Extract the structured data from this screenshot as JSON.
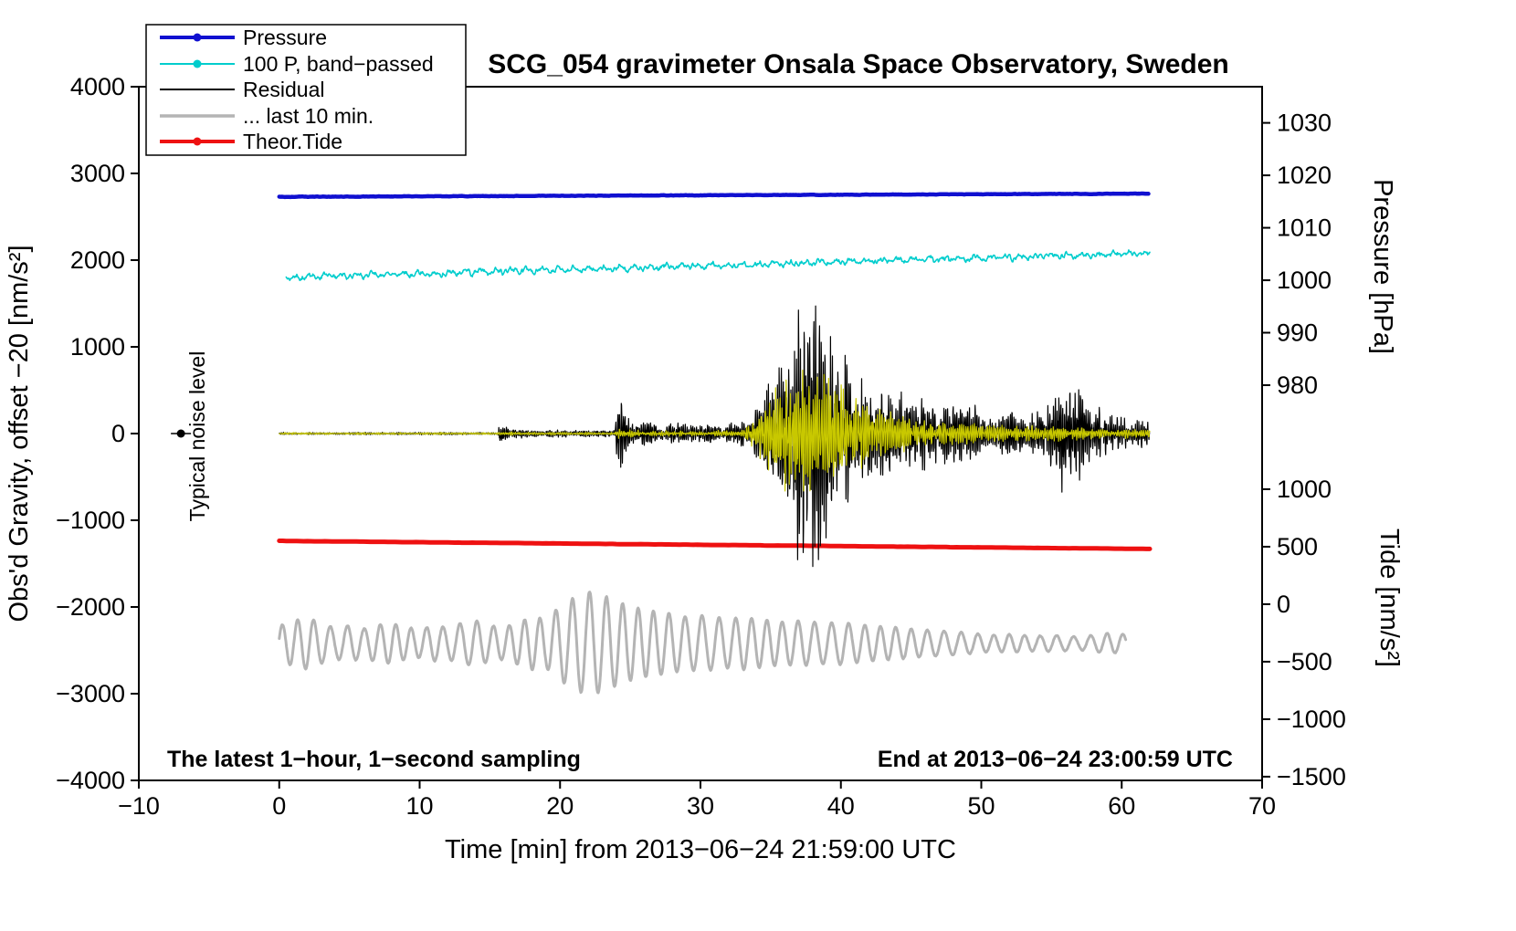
{
  "chart_data": {
    "type": "line",
    "title": "SCG_054 gravimeter Onsala Space Observatory, Sweden",
    "xlabel": "Time [min] from 2013−06−24 21:59:00 UTC",
    "ylabel_left": "Obs'd Gravity, offset −20 [nm/s²]",
    "ylabel_pressure": "Pressure [hPa]",
    "ylabel_tide": "Tide [nm/s²]",
    "annotations": {
      "sampling_note": "The latest 1−hour, 1−second sampling",
      "end_time_note": "End at 2013−06−24 23:00:59 UTC",
      "noise_label": "Typical noise level",
      "noise_marker": {
        "x": -7,
        "y": 0
      }
    },
    "axes": {
      "x": {
        "min": -10,
        "max": 70,
        "ticks": [
          -10,
          0,
          10,
          20,
          30,
          40,
          50,
          60,
          70
        ]
      },
      "y_left": {
        "min": -4000,
        "max": 4000,
        "ticks": [
          -4000,
          -3000,
          -2000,
          -1000,
          0,
          1000,
          2000,
          3000,
          4000
        ]
      },
      "pressure": {
        "ticks": [
          1030,
          1020,
          1010,
          1000,
          990,
          980
        ],
        "gravity_at_1000hPa": 1768,
        "gravity_per_hPa": 60.5
      },
      "tide": {
        "ticks": [
          1000,
          500,
          0,
          -500,
          -1000,
          -1500
        ],
        "gravity_at_0": -1968,
        "gravity_per_unit": 1.326
      }
    },
    "legend": [
      {
        "label": "Pressure",
        "color": "#1010d0",
        "dot": true,
        "sample_width": 4
      },
      {
        "label": "100 P, band−passed",
        "color": "#00cdcd",
        "dot": true,
        "sample_width": 2
      },
      {
        "label": "Residual",
        "color": "#000000",
        "dot": false,
        "sample_width": 2
      },
      {
        "label": "... last 10 min.",
        "color": "#b4b4b4",
        "dot": false,
        "sample_width": 3.5
      },
      {
        "label": "Theor.Tide",
        "color": "#ee1111",
        "dot": true,
        "sample_width": 4
      }
    ],
    "series": [
      {
        "id": "last10",
        "label": "... last 10 min.",
        "kind": "wave",
        "color": "#b4b4b4",
        "width": 3,
        "x_start": 0,
        "x_end": 60.3,
        "step": 0.04,
        "center": -2420,
        "carrier_period": 1.15,
        "noise": 8,
        "amp_envelope": [
          [
            0,
            200
          ],
          [
            1,
            260
          ],
          [
            2,
            300
          ],
          [
            3,
            230
          ],
          [
            4,
            180
          ],
          [
            5,
            210
          ],
          [
            6,
            170
          ],
          [
            7,
            215
          ],
          [
            8,
            235
          ],
          [
            9,
            185
          ],
          [
            10,
            165
          ],
          [
            11,
            205
          ],
          [
            12,
            185
          ],
          [
            13,
            235
          ],
          [
            14,
            265
          ],
          [
            15,
            205
          ],
          [
            16,
            185
          ],
          [
            17,
            245
          ],
          [
            18,
            305
          ],
          [
            19,
            285
          ],
          [
            20,
            430
          ],
          [
            21,
            530
          ],
          [
            22,
            600
          ],
          [
            23,
            560
          ],
          [
            24,
            490
          ],
          [
            25,
            430
          ],
          [
            26,
            390
          ],
          [
            27,
            365
          ],
          [
            28,
            345
          ],
          [
            29,
            305
          ],
          [
            30,
            325
          ],
          [
            31,
            305
          ],
          [
            32,
            285
          ],
          [
            33,
            305
          ],
          [
            34,
            285
          ],
          [
            35,
            265
          ],
          [
            36,
            245
          ],
          [
            37,
            265
          ],
          [
            38,
            245
          ],
          [
            39,
            235
          ],
          [
            40,
            245
          ],
          [
            41,
            225
          ],
          [
            42,
            205
          ],
          [
            43,
            195
          ],
          [
            44,
            185
          ],
          [
            45,
            165
          ],
          [
            46,
            155
          ],
          [
            47,
            145
          ],
          [
            48,
            135
          ],
          [
            49,
            125
          ],
          [
            50,
            105
          ],
          [
            51,
            95
          ],
          [
            52,
            105
          ],
          [
            53,
            95
          ],
          [
            54,
            85
          ],
          [
            55,
            95
          ],
          [
            56,
            85
          ],
          [
            57,
            75
          ],
          [
            58,
            95
          ],
          [
            59,
            115
          ],
          [
            60,
            105
          ]
        ]
      },
      {
        "id": "theor_tide",
        "label": "Theor.Tide",
        "kind": "trend",
        "color": "#ee1111",
        "width": 5,
        "x_start": 0,
        "x_end": 62,
        "step": 0.25,
        "base": -1238,
        "slope": -1.5,
        "noise": 2
      },
      {
        "id": "p_band",
        "label": "100 P, band−passed",
        "kind": "band",
        "color": "#00cdcd",
        "width": 1.6,
        "x_start": 0.5,
        "x_end": 62,
        "step": 0.05,
        "base": 1800,
        "slope": 4.5,
        "noise": 42
      },
      {
        "id": "pressure",
        "label": "Pressure",
        "kind": "trend",
        "color": "#1010d0",
        "width": 4.5,
        "x_start": 0,
        "x_end": 62,
        "step": 0.1,
        "base": 2730,
        "slope": 0.6,
        "noise": 4
      },
      {
        "id": "residual",
        "label": "Residual",
        "kind": "seismic",
        "color": "#000000",
        "width": 1.2,
        "x_start": 0,
        "x_end": 62,
        "step": 0.02,
        "baseline": 0,
        "carrier_period": 0.13,
        "amp_envelope": [
          [
            0,
            12
          ],
          [
            15.5,
            12
          ],
          [
            15.75,
            160
          ],
          [
            16.3,
            60
          ],
          [
            17,
            45
          ],
          [
            18,
            38
          ],
          [
            20,
            35
          ],
          [
            23.9,
            35
          ],
          [
            24.15,
            620
          ],
          [
            24.5,
            220
          ],
          [
            25.2,
            140
          ],
          [
            26.5,
            115
          ],
          [
            28,
            100
          ],
          [
            30,
            95
          ],
          [
            32,
            100
          ],
          [
            33.5,
            140
          ],
          [
            34.2,
            320
          ],
          [
            35,
            520
          ],
          [
            35.8,
            800
          ],
          [
            36.5,
            1080
          ],
          [
            37.2,
            1350
          ],
          [
            37.8,
            1500
          ],
          [
            38.3,
            1280
          ],
          [
            39,
            980
          ],
          [
            39.8,
            820
          ],
          [
            40.6,
            680
          ],
          [
            41.5,
            590
          ],
          [
            42.5,
            510
          ],
          [
            43.5,
            470
          ],
          [
            44.5,
            430
          ],
          [
            45.5,
            400
          ],
          [
            46.5,
            350
          ],
          [
            47.5,
            330
          ],
          [
            48.5,
            310
          ],
          [
            49.5,
            280
          ],
          [
            50.5,
            250
          ],
          [
            51.5,
            230
          ],
          [
            52.5,
            215
          ],
          [
            53.5,
            205
          ],
          [
            54.4,
            230
          ],
          [
            54.9,
            430
          ],
          [
            55.5,
            540
          ],
          [
            56.2,
            560
          ],
          [
            56.9,
            430
          ],
          [
            57.6,
            300
          ],
          [
            58.5,
            230
          ],
          [
            59.5,
            190
          ],
          [
            60.5,
            165
          ],
          [
            61.2,
            150
          ],
          [
            62,
            130
          ]
        ]
      },
      {
        "id": "residual_band",
        "label": "Residual band−passed",
        "kind": "seismic",
        "color": "#c8c800",
        "width": 1.2,
        "x_start": 0,
        "x_end": 62,
        "step": 0.025,
        "baseline": 0,
        "carrier_period": 0.15,
        "amp_envelope": [
          [
            0,
            11
          ],
          [
            15.4,
            11
          ],
          [
            16,
            22
          ],
          [
            17,
            16
          ],
          [
            20,
            13
          ],
          [
            23.9,
            14
          ],
          [
            24.2,
            55
          ],
          [
            25,
            35
          ],
          [
            27,
            28
          ],
          [
            30,
            28
          ],
          [
            33,
            38
          ],
          [
            34,
            230
          ],
          [
            35,
            420
          ],
          [
            36,
            560
          ],
          [
            37,
            620
          ],
          [
            38,
            580
          ],
          [
            39,
            520
          ],
          [
            40,
            470
          ],
          [
            41,
            380
          ],
          [
            42,
            300
          ],
          [
            43.5,
            230
          ],
          [
            45,
            170
          ],
          [
            47,
            130
          ],
          [
            49,
            100
          ],
          [
            51,
            85
          ],
          [
            53,
            75
          ],
          [
            55,
            85
          ],
          [
            57,
            70
          ],
          [
            59,
            55
          ],
          [
            62,
            45
          ]
        ]
      }
    ]
  }
}
